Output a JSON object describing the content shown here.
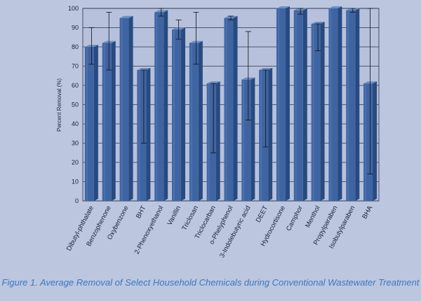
{
  "chart_data": {
    "type": "bar",
    "title": "",
    "xlabel": "",
    "ylabel": "Percent Removal (%)",
    "ylim": [
      0,
      100
    ],
    "yticks": [
      0,
      10,
      20,
      30,
      40,
      50,
      60,
      70,
      80,
      90,
      100
    ],
    "categories": [
      "Dibutyl-phthalate",
      "Benzophenone",
      "Oxybenzone",
      "BHT",
      "2-Phenoxyethanol",
      "Vanillin",
      "Triclosan",
      "Triclocarban",
      "o-Phelyphenol",
      "3-Indolebutyric acid",
      "DEET",
      "Hydrocortisone",
      "Camphor",
      "Menthol",
      "Propylparaben",
      "Isobutylparaben",
      "BHA"
    ],
    "values": [
      80,
      82,
      95,
      68,
      98,
      89,
      82,
      61,
      95,
      63,
      68,
      100,
      99,
      92,
      100,
      99,
      61
    ],
    "error_low": [
      71,
      68,
      95,
      30,
      96,
      84,
      71,
      25,
      94,
      42,
      28,
      100,
      97,
      78,
      100,
      98,
      14
    ],
    "error_high": [
      90,
      98,
      95,
      68,
      100,
      94,
      98,
      61,
      96,
      88,
      68,
      100,
      100,
      92,
      100,
      100,
      100
    ],
    "grid": "horizontal",
    "legend": "none",
    "colors": {
      "bar_front": "#3e64a2",
      "bar_side": "#284a80",
      "bar_top": "#6b8fc7",
      "background": "#bcc6df",
      "plot_background": "#b7c1dc",
      "axis_text": "#1c2233",
      "caption": "#3b78bf"
    }
  },
  "caption": "Figure 1. Average Removal of Select Household Chemicals during Conventional Wastewater Treatment"
}
